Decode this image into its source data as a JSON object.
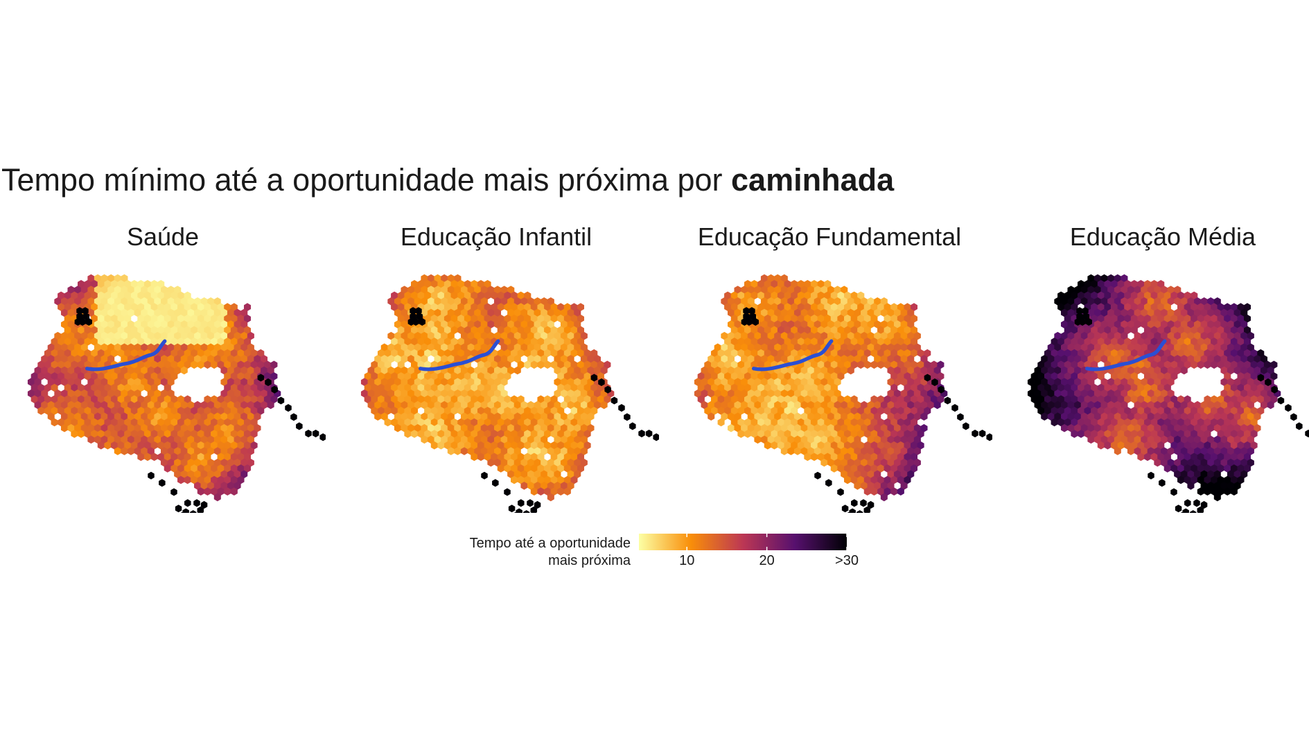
{
  "title": {
    "prefix": "Tempo mínimo até a oportunidade mais próxima por ",
    "emphasis": "caminhada"
  },
  "panels": [
    {
      "label": "Saúde",
      "access": "low",
      "seed": 11
    },
    {
      "label": "Educação Infantil",
      "access": "high",
      "seed": 23
    },
    {
      "label": "Educação Fundamental",
      "access": "high",
      "seed": 37
    },
    {
      "label": "Educação Média",
      "access": "medium",
      "seed": 51
    }
  ],
  "legend": {
    "title_line1": "Tempo até a oportunidade",
    "title_line2": "mais próxima",
    "ticks": [
      {
        "value": 10,
        "label": "10"
      },
      {
        "value": 20,
        "label": "20"
      },
      {
        "value": 30,
        "label": ">30"
      }
    ],
    "range": [
      4,
      30
    ]
  },
  "colors": {
    "scale": [
      "#fcffa4",
      "#f98e09",
      "#bc3754",
      "#57106e",
      "#000004"
    ],
    "river": "#2a4fd4"
  }
}
